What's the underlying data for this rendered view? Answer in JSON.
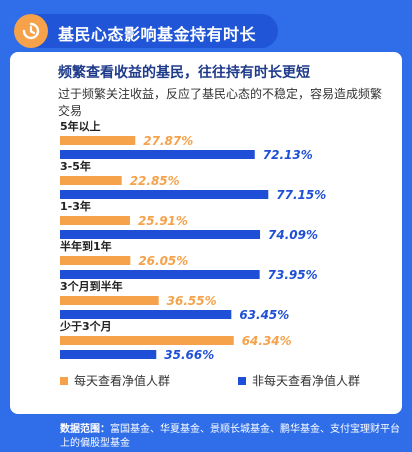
{
  "header": {
    "title": "基民心态影响基金持有时长"
  },
  "subtitle": "频繁查看收益的基民，往往持有时长更短",
  "description": "过于频繁关注收益，反应了基民心态的不稳定，容易造成频繁交易",
  "colors": {
    "orange": "#f5a24a",
    "blue": "#1f4fd6",
    "background": "#2f6ee8"
  },
  "chart_data": {
    "type": "bar",
    "orientation": "horizontal",
    "unit": "%",
    "categories": [
      "5年以上",
      "3-5年",
      "1-3年",
      "半年到1年",
      "3个月到半年",
      "少于3个月"
    ],
    "series": [
      {
        "name": "每天查看净值人群",
        "color": "#f5a24a",
        "values": [
          27.87,
          22.85,
          25.91,
          26.05,
          36.55,
          64.34
        ]
      },
      {
        "name": "非每天查看净值人群",
        "color": "#1f4fd6",
        "values": [
          72.13,
          77.15,
          74.09,
          73.95,
          63.45,
          35.66
        ]
      }
    ],
    "xlim": [
      0,
      100
    ],
    "legend": "bottom"
  },
  "source": {
    "label": "数据范围：",
    "text": "富国基金、华夏基金、景顺长城基金、鹏华基金、支付宝理财平台上的偏股型基金"
  }
}
